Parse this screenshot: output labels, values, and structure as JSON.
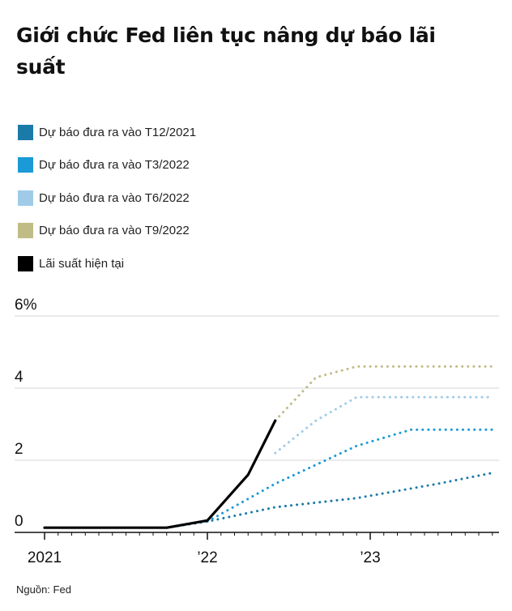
{
  "title": "Giới chức Fed liên tục nâng dự báo lãi suất",
  "source": "Nguồn: Fed",
  "legend": [
    {
      "label": "Dự báo đưa ra vào T12/2021",
      "color": "#1a7aa8"
    },
    {
      "label": "Dự báo đưa ra vào T3/2022",
      "color": "#1a9ad6"
    },
    {
      "label": "Dự báo đưa ra vào T6/2022",
      "color": "#9fcbe8"
    },
    {
      "label": "Dự báo đưa ra vào T9/2022",
      "color": "#c0bc85"
    },
    {
      "label": "Lãi suất hiện tại",
      "color": "#000000"
    }
  ],
  "chart_data": {
    "type": "line",
    "title": "Giới chức Fed liên tục nâng dự báo lãi suất",
    "ylabel": "",
    "xlabel": "",
    "ylim": [
      0,
      6
    ],
    "xlim": [
      "2021-01",
      "2023-10"
    ],
    "y_ticks": [
      {
        "value": 0,
        "label": "0"
      },
      {
        "value": 2,
        "label": "2"
      },
      {
        "value": 4,
        "label": "4"
      },
      {
        "value": 6,
        "label": "6%"
      }
    ],
    "x_ticks": [
      {
        "value": "2021-01",
        "label": "2021"
      },
      {
        "value": "2022-01",
        "label": "’22"
      },
      {
        "value": "2023-01",
        "label": "’23"
      }
    ],
    "grid": "horizontal",
    "legend_position": "top-left",
    "series": [
      {
        "name": "Dự báo đưa ra vào T12/2021",
        "color": "#1a7aa8",
        "style": "dotted",
        "points": [
          [
            "2021-10",
            0.13
          ],
          [
            "2022-01",
            0.3
          ],
          [
            "2022-06",
            0.7
          ],
          [
            "2022-12",
            0.95
          ],
          [
            "2023-06",
            1.35
          ],
          [
            "2023-10",
            1.65
          ]
        ]
      },
      {
        "name": "Dự báo đưa ra vào T3/2022",
        "color": "#1a9ad6",
        "style": "dotted",
        "points": [
          [
            "2022-01",
            0.3
          ],
          [
            "2022-06",
            1.35
          ],
          [
            "2022-12",
            2.4
          ],
          [
            "2023-04",
            2.85
          ],
          [
            "2023-10",
            2.85
          ]
        ]
      },
      {
        "name": "Dự báo đưa ra vào T6/2022",
        "color": "#9fcbe8",
        "style": "dotted",
        "points": [
          [
            "2022-06",
            2.2
          ],
          [
            "2022-09",
            3.1
          ],
          [
            "2022-12",
            3.75
          ],
          [
            "2023-10",
            3.75
          ]
        ]
      },
      {
        "name": "Dự báo đưa ra vào T9/2022",
        "color": "#c0bc85",
        "style": "dotted",
        "points": [
          [
            "2022-06",
            3.1
          ],
          [
            "2022-09",
            4.3
          ],
          [
            "2022-12",
            4.6
          ],
          [
            "2023-10",
            4.6
          ]
        ]
      },
      {
        "name": "Lãi suất hiện tại",
        "color": "#000000",
        "style": "solid",
        "points": [
          [
            "2021-01",
            0.13
          ],
          [
            "2021-10",
            0.13
          ],
          [
            "2022-01",
            0.33
          ],
          [
            "2022-04",
            1.6
          ],
          [
            "2022-06",
            3.1
          ]
        ]
      }
    ]
  }
}
